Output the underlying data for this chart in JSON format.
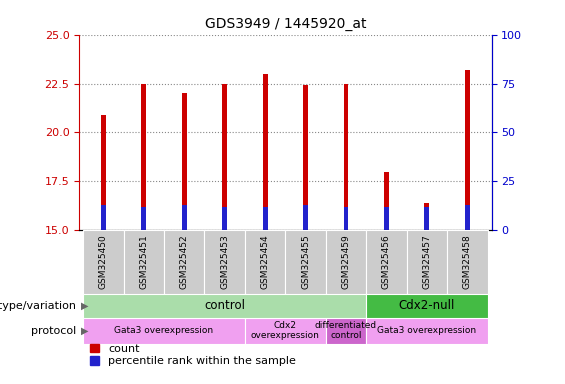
{
  "title": "GDS3949 / 1445920_at",
  "samples": [
    "GSM325450",
    "GSM325451",
    "GSM325452",
    "GSM325453",
    "GSM325454",
    "GSM325455",
    "GSM325459",
    "GSM325456",
    "GSM325457",
    "GSM325458"
  ],
  "count_values": [
    20.9,
    22.5,
    22.0,
    22.5,
    23.0,
    22.4,
    22.5,
    18.0,
    16.4,
    23.2
  ],
  "percentile_values": [
    16.3,
    16.2,
    16.3,
    16.2,
    16.2,
    16.3,
    16.2,
    16.2,
    16.2,
    16.3
  ],
  "bar_bottom": 15.0,
  "ylim_left": [
    15,
    25
  ],
  "ylim_right": [
    0,
    100
  ],
  "yticks_left": [
    15,
    17.5,
    20,
    22.5,
    25
  ],
  "yticks_right": [
    0,
    25,
    50,
    75,
    100
  ],
  "bar_color_red": "#cc0000",
  "bar_color_blue": "#2222cc",
  "bar_width": 0.12,
  "grid_color": "#888888",
  "genotype_row": [
    {
      "label": "control",
      "start": 0,
      "end": 7,
      "color": "#aaddaa"
    },
    {
      "label": "Cdx2-null",
      "start": 7,
      "end": 10,
      "color": "#44bb44"
    }
  ],
  "protocol_row": [
    {
      "label": "Gata3 overexpression",
      "start": 0,
      "end": 4,
      "color": "#f0a0f0"
    },
    {
      "label": "Cdx2\noverexpression",
      "start": 4,
      "end": 6,
      "color": "#f0a0f0"
    },
    {
      "label": "differentiated\ncontrol",
      "start": 6,
      "end": 7,
      "color": "#cc66cc"
    },
    {
      "label": "Gata3 overexpression",
      "start": 7,
      "end": 10,
      "color": "#f0a0f0"
    }
  ],
  "left_axis_color": "#cc0000",
  "right_axis_color": "#0000cc",
  "title_fontsize": 10,
  "tick_fontsize": 8,
  "sample_fontsize": 6.5,
  "row_label_fontsize": 8,
  "legend_fontsize": 8
}
